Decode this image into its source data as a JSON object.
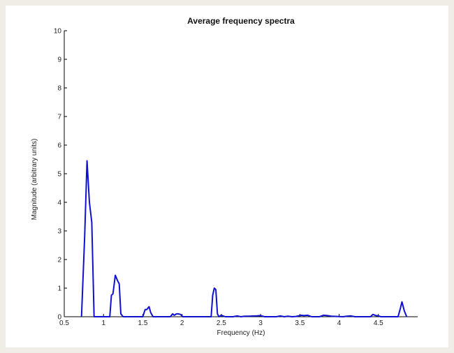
{
  "chart_data": {
    "type": "line",
    "title": "Average frequency spectra",
    "xlabel": "Frequency (Hz)",
    "ylabel": "Magnitude (arbitrary units)",
    "xlim": [
      0.5,
      5.0
    ],
    "ylim": [
      0,
      10
    ],
    "xticks": [
      "0.5",
      "1",
      "1.5",
      "2",
      "2.5",
      "3",
      "3.5",
      "4",
      "4.5"
    ],
    "xtick_values": [
      0.5,
      1.0,
      1.5,
      2.0,
      2.5,
      3.0,
      3.5,
      4.0,
      4.5
    ],
    "yticks": [
      "0",
      "1",
      "2",
      "3",
      "4",
      "5",
      "6",
      "7",
      "8",
      "9",
      "10"
    ],
    "ytick_values": [
      0,
      1,
      2,
      3,
      4,
      5,
      6,
      7,
      8,
      9,
      10
    ],
    "grid": false,
    "colors": {
      "line": "#1010d0",
      "axis": "#000000"
    },
    "series": [
      {
        "x": [
          0.72,
          0.76,
          0.79,
          0.82,
          0.85,
          0.88,
          1.08,
          1.1,
          1.12,
          1.15,
          1.18,
          1.2,
          1.22,
          1.25,
          1.5,
          1.53,
          1.55,
          1.58,
          1.6,
          1.63,
          1.85,
          1.88,
          1.9,
          1.93,
          1.95,
          1.98,
          2.01,
          2.05,
          2.37,
          2.39,
          2.41,
          2.43,
          2.45,
          2.47,
          2.5,
          2.55,
          2.65,
          2.7,
          2.75,
          2.8,
          2.85,
          2.95,
          3.0,
          3.05,
          3.2,
          3.25,
          3.3,
          3.35,
          3.4,
          3.45,
          3.52,
          3.55,
          3.6,
          3.65,
          3.75,
          3.8,
          3.85,
          3.9,
          4.05,
          4.1,
          4.15,
          4.2,
          4.4,
          4.43,
          4.47,
          4.5,
          4.53,
          4.75,
          4.78,
          4.8,
          4.83,
          4.86
        ],
        "y": [
          0,
          2.8,
          5.45,
          4.0,
          3.3,
          0,
          0,
          0.75,
          0.8,
          1.45,
          1.25,
          1.15,
          0.1,
          0,
          0,
          0.25,
          0.25,
          0.35,
          0.15,
          0,
          0,
          0.1,
          0.05,
          0.1,
          0.1,
          0.08,
          0,
          0,
          0,
          0.75,
          1.0,
          0.95,
          0.1,
          0,
          0.05,
          0,
          0,
          0.03,
          0,
          0.02,
          0.02,
          0.03,
          0.04,
          0,
          0,
          0.03,
          0,
          0.02,
          0,
          0.01,
          0.05,
          0.04,
          0.05,
          0,
          0,
          0.05,
          0.04,
          0.02,
          0,
          0.02,
          0.03,
          0,
          0,
          0.08,
          0.04,
          0.03,
          0,
          0,
          0.3,
          0.52,
          0.2,
          0
        ]
      }
    ]
  }
}
